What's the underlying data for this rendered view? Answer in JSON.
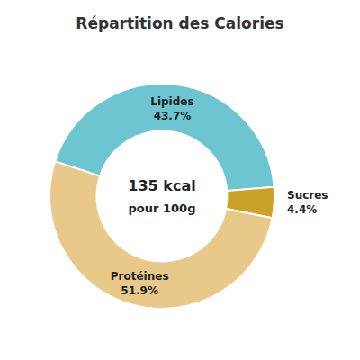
{
  "chart_data": {
    "type": "donut",
    "title": "Répartition des Calories",
    "annotations": [
      "135 kcal",
      "pour 100g"
    ],
    "categories": [
      "Lipides",
      "Sucres",
      "Protéines"
    ],
    "values": [
      43.7,
      4.4,
      51.9
    ],
    "value_labels": [
      "43.7%",
      "4.4%",
      "51.9%"
    ],
    "colors": [
      "#6cc5d1",
      "#c9a227",
      "#e8c98a"
    ],
    "data_labels": true
  }
}
